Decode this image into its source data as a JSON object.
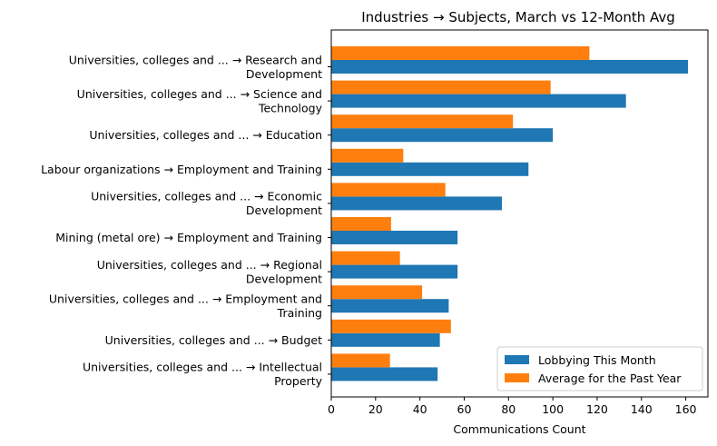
{
  "chart_data": {
    "type": "bar",
    "orientation": "horizontal",
    "title": "Industries → Subjects, March vs 12-Month Avg",
    "xlabel": "Communications Count",
    "ylabel": "",
    "xlim": [
      0,
      170
    ],
    "xticks": [
      0,
      20,
      40,
      60,
      80,
      100,
      120,
      140,
      160
    ],
    "categories": [
      [
        "Universities, colleges and ... → Research and",
        "Development"
      ],
      [
        "Universities, colleges and ... → Science and",
        "Technology"
      ],
      [
        "Universities, colleges and ... → Education"
      ],
      [
        "Labour organizations → Employment and Training"
      ],
      [
        "Universities, colleges and ... → Economic",
        "Development"
      ],
      [
        "Mining (metal ore) → Employment and Training"
      ],
      [
        "Universities, colleges and ... → Regional",
        "Development"
      ],
      [
        "Universities, colleges and ... → Employment and",
        "Training"
      ],
      [
        "Universities, colleges and ... → Budget"
      ],
      [
        "Universities, colleges and ... → Intellectual",
        "Property"
      ]
    ],
    "series": [
      {
        "name": "Lobbying This Month",
        "color": "#1f77b4",
        "values": [
          161,
          133,
          100,
          89,
          77,
          57,
          57,
          53,
          49,
          48
        ]
      },
      {
        "name": "Average for the Past Year",
        "color": "#ff7f0e",
        "values": [
          116.5,
          99,
          82,
          32.5,
          51.5,
          27,
          31,
          41,
          54,
          26.5
        ]
      }
    ],
    "legend": "bottom-right",
    "grid": false
  }
}
